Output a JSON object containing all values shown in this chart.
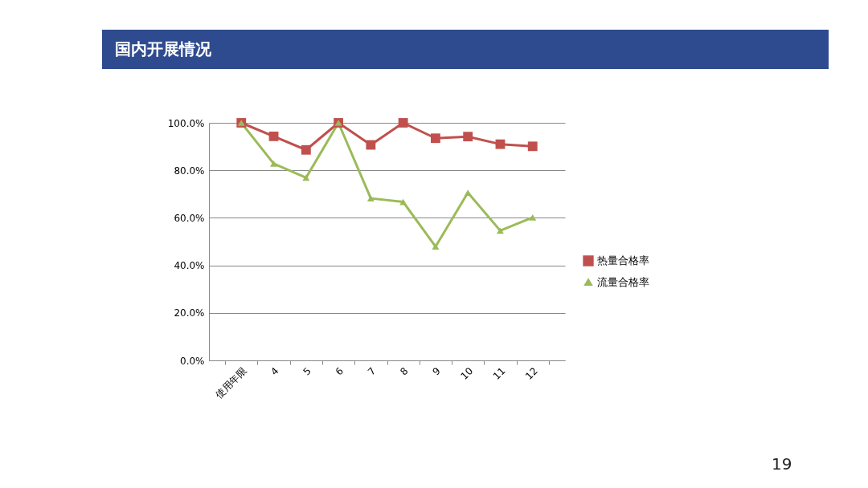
{
  "chart_data": {
    "type": "line",
    "title": "国内开展情况",
    "categories": [
      "使用年限",
      "4",
      "5",
      "6",
      "7",
      "8",
      "9",
      "10",
      "11",
      "12"
    ],
    "series": [
      {
        "name": "热量合格率",
        "color": "#c0504d",
        "marker": "square",
        "values": [
          100,
          94.3,
          88.6,
          100,
          90.7,
          100,
          93.5,
          94.2,
          91.0,
          90.1
        ]
      },
      {
        "name": "流量合格率",
        "color": "#9bbb59",
        "marker": "triangle",
        "values": [
          100,
          82.8,
          76.9,
          100,
          68.2,
          66.7,
          47.9,
          70.6,
          54.6,
          60.2
        ]
      }
    ],
    "ylim": [
      0,
      100
    ],
    "yticks": [
      {
        "value": 0,
        "label": "0.0%"
      },
      {
        "value": 20,
        "label": "20.0%"
      },
      {
        "value": 40,
        "label": "40.0%"
      },
      {
        "value": 60,
        "label": "60.0%"
      },
      {
        "value": 80,
        "label": "80.0%"
      },
      {
        "value": 100,
        "label": "100.0%"
      }
    ],
    "grid": "y",
    "legend": "right",
    "line_style": "solid",
    "annotations": [
      "19"
    ]
  }
}
